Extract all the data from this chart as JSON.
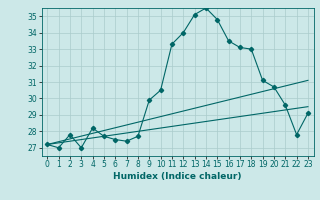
{
  "title": "",
  "xlabel": "Humidex (Indice chaleur)",
  "ylabel": "",
  "bg_color": "#cce8e8",
  "grid_color": "#aacccc",
  "line_color": "#006666",
  "xlim": [
    -0.5,
    23.5
  ],
  "ylim": [
    26.5,
    35.5
  ],
  "yticks": [
    27,
    28,
    29,
    30,
    31,
    32,
    33,
    34,
    35
  ],
  "xticks": [
    0,
    1,
    2,
    3,
    4,
    5,
    6,
    7,
    8,
    9,
    10,
    11,
    12,
    13,
    14,
    15,
    16,
    17,
    18,
    19,
    20,
    21,
    22,
    23
  ],
  "line1_x": [
    0,
    1,
    2,
    3,
    4,
    5,
    6,
    7,
    8,
    9,
    10,
    11,
    12,
    13,
    14,
    15,
    16,
    17,
    18,
    19,
    20,
    21,
    22,
    23
  ],
  "line1_y": [
    27.2,
    27.0,
    27.8,
    27.0,
    28.2,
    27.7,
    27.5,
    27.4,
    27.7,
    29.9,
    30.5,
    33.3,
    34.0,
    35.1,
    35.5,
    34.8,
    33.5,
    33.1,
    33.0,
    31.1,
    30.7,
    29.6,
    27.8,
    29.1
  ],
  "line2_x": [
    0,
    23
  ],
  "line2_y": [
    27.2,
    31.1
  ],
  "line3_x": [
    0,
    23
  ],
  "line3_y": [
    27.2,
    29.5
  ]
}
